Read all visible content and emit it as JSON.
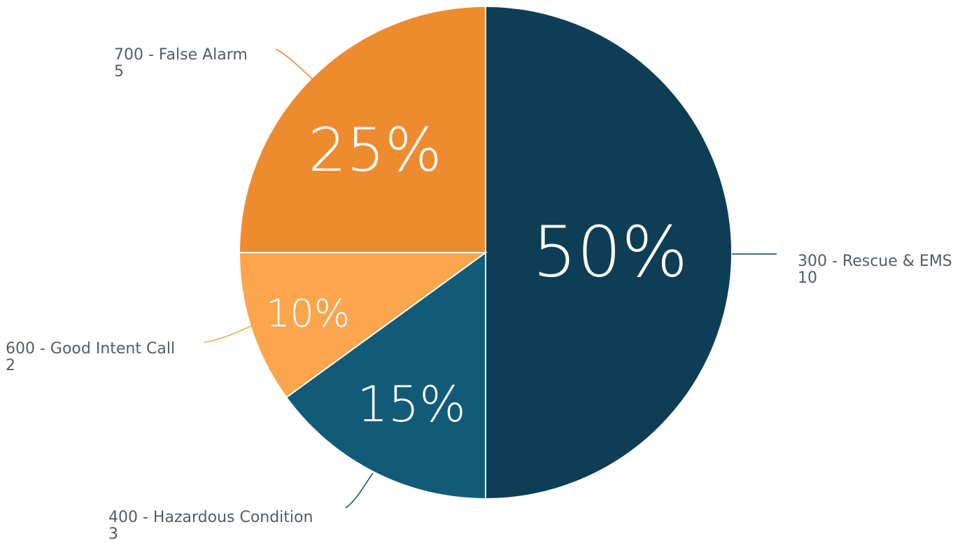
{
  "chart_data": {
    "type": "pie",
    "title": "",
    "slices": [
      {
        "code": "300",
        "label": "300 - Rescue & EMS",
        "value": 10,
        "value_label": "10",
        "percent_label": "50%",
        "color": "#0e3d56"
      },
      {
        "code": "400",
        "label": "400 - Hazardous Condition",
        "value": 3,
        "value_label": "3",
        "percent_label": "15%",
        "color": "#125b78"
      },
      {
        "code": "600",
        "label": "600 - Good Intent Call",
        "value": 2,
        "value_label": "2",
        "percent_label": "10%",
        "color": "#fba54d"
      },
      {
        "code": "700",
        "label": "700 - False Alarm",
        "value": 5,
        "value_label": "5",
        "percent_label": "25%",
        "color": "#ef8b2f"
      }
    ],
    "start_angle_deg": 0,
    "direction": "clockwise",
    "legend": "none"
  }
}
